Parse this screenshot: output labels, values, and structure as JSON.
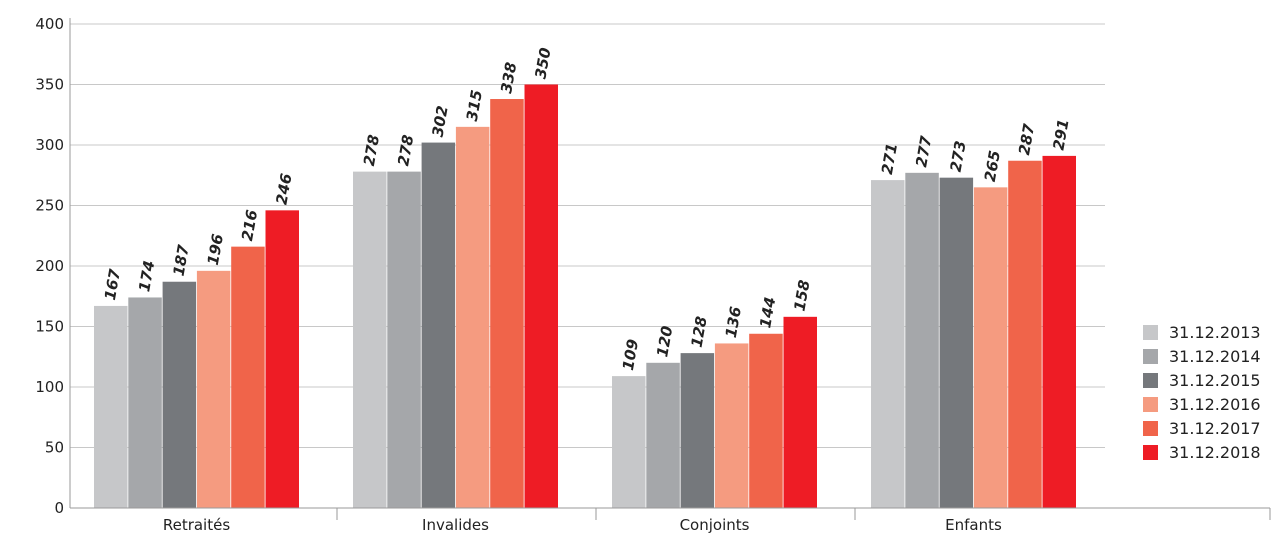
{
  "chart_data": {
    "type": "bar",
    "title": "",
    "xlabel": "",
    "ylabel": "",
    "ylim": [
      0,
      400
    ],
    "yticks": [
      0,
      50,
      100,
      150,
      200,
      250,
      300,
      350,
      400
    ],
    "grid": true,
    "legend_position": "right",
    "categories": [
      "Retraités",
      "Invalides",
      "Conjoints",
      "Enfants"
    ],
    "series": [
      {
        "name": "31.12.2013",
        "color": "#c6c7c9",
        "values": [
          167,
          278,
          109,
          271
        ]
      },
      {
        "name": "31.12.2014",
        "color": "#a5a7aa",
        "values": [
          174,
          278,
          120,
          277
        ]
      },
      {
        "name": "31.12.2015",
        "color": "#75787c",
        "values": [
          187,
          302,
          128,
          273
        ]
      },
      {
        "name": "31.12.2016",
        "color": "#f59b80",
        "values": [
          196,
          315,
          136,
          265
        ]
      },
      {
        "name": "31.12.2017",
        "color": "#f0644a",
        "values": [
          216,
          338,
          144,
          287
        ]
      },
      {
        "name": "31.12.2018",
        "color": "#ee1c25",
        "values": [
          246,
          350,
          158,
          291
        ]
      }
    ]
  }
}
